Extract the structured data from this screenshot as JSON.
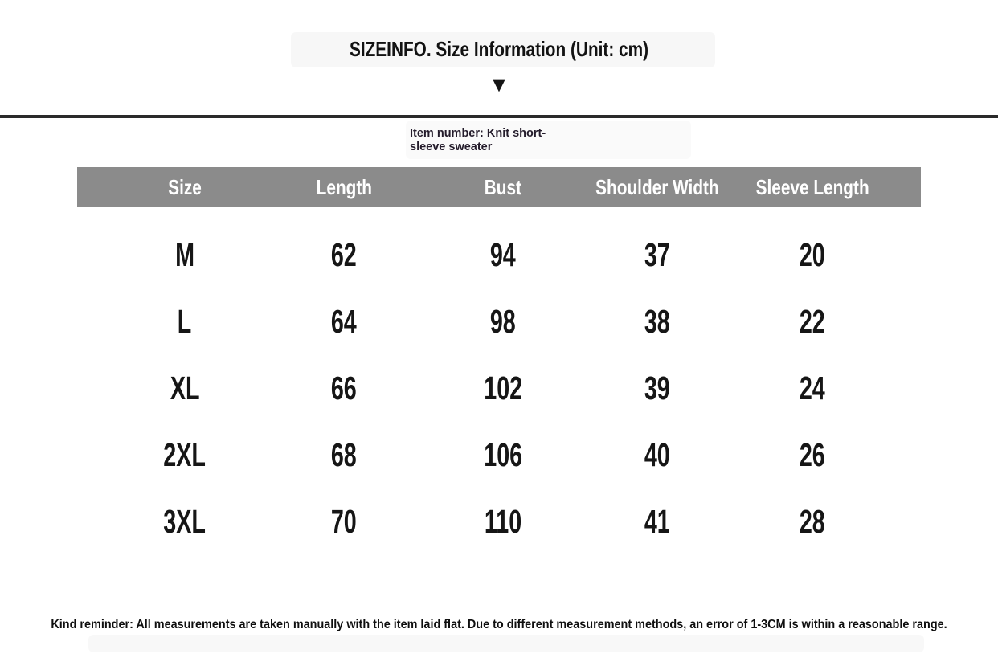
{
  "page": {
    "title": "SIZEINFO. Size Information (Unit: cm)",
    "item_number_line1": "Item number: Knit short-",
    "item_number_line2": "sleeve sweater",
    "reminder": "Kind reminder: All measurements are taken manually with the item laid flat. Due to different measurement methods, an error of 1-3CM is within a reasonable range."
  },
  "icons": {
    "down_triangle": "▼"
  },
  "colors": {
    "header_bg": "#8b8b8b",
    "header_text": "#ffffff",
    "body_text": "#161616",
    "item_number_text": "#241c2b",
    "divider": "#2a2a2a"
  },
  "table": {
    "unit": "cm",
    "headers": [
      "Size",
      "Length",
      "Bust",
      "Shoulder Width",
      "Sleeve Length"
    ],
    "rows": [
      [
        "M",
        "62",
        "94",
        "37",
        "20"
      ],
      [
        "L",
        "64",
        "98",
        "38",
        "22"
      ],
      [
        "XL",
        "66",
        "102",
        "39",
        "24"
      ],
      [
        "2XL",
        "68",
        "106",
        "40",
        "26"
      ],
      [
        "3XL",
        "70",
        "110",
        "41",
        "28"
      ]
    ]
  }
}
